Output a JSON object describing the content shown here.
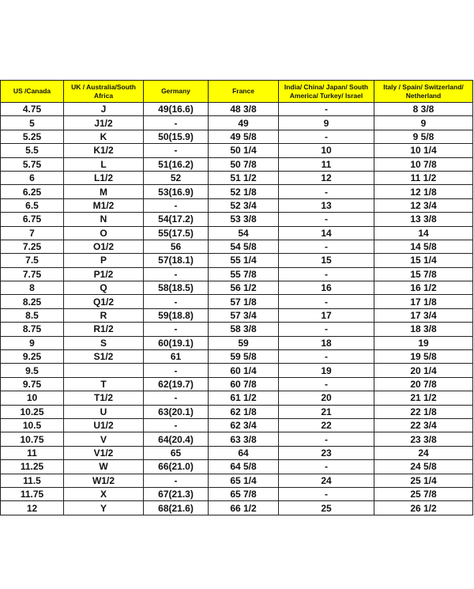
{
  "colors": {
    "header_bg": "#ffff00",
    "border": "#222222"
  },
  "table": {
    "headers": [
      "US /Canada",
      "UK / Australia/South Africa",
      "Germany",
      "France",
      "India/ China/ Japan/ South America/ Turkey/ Israel",
      "Italy / Spain/ Switzerland/ Netherland"
    ],
    "rows": [
      [
        "4.75",
        "J",
        "49(16.6)",
        "48 3/8",
        "-",
        "8 3/8"
      ],
      [
        "5",
        "J1/2",
        "-",
        "49",
        "9",
        "9"
      ],
      [
        "5.25",
        "K",
        "50(15.9)",
        "49 5/8",
        "-",
        "9 5/8"
      ],
      [
        "5.5",
        "K1/2",
        "-",
        "50 1/4",
        "10",
        "10 1/4"
      ],
      [
        "5.75",
        "L",
        "51(16.2)",
        "50 7/8",
        "11",
        "10 7/8"
      ],
      [
        "6",
        "L1/2",
        "52",
        "51 1/2",
        "12",
        "11 1/2"
      ],
      [
        "6.25",
        "M",
        "53(16.9)",
        "52 1/8",
        "-",
        "12 1/8"
      ],
      [
        "6.5",
        "M1/2",
        "-",
        "52 3/4",
        "13",
        "12 3/4"
      ],
      [
        "6.75",
        "N",
        "54(17.2)",
        "53 3/8",
        "-",
        "13 3/8"
      ],
      [
        "7",
        "O",
        "55(17.5)",
        "54",
        "14",
        "14"
      ],
      [
        "7.25",
        "O1/2",
        "56",
        "54 5/8",
        "-",
        "14 5/8"
      ],
      [
        "7.5",
        "P",
        "57(18.1)",
        "55 1/4",
        "15",
        "15 1/4"
      ],
      [
        "7.75",
        "P1/2",
        "-",
        "55 7/8",
        "-",
        "15 7/8"
      ],
      [
        "8",
        "Q",
        "58(18.5)",
        "56 1/2",
        "16",
        "16 1/2"
      ],
      [
        "8.25",
        "Q1/2",
        "-",
        "57 1/8",
        "-",
        "17 1/8"
      ],
      [
        "8.5",
        "R",
        "59(18.8)",
        "57 3/4",
        "17",
        "17 3/4"
      ],
      [
        "8.75",
        "R1/2",
        "-",
        "58 3/8",
        "-",
        "18 3/8"
      ],
      [
        "9",
        "S",
        "60(19.1)",
        "59",
        "18",
        "19"
      ],
      [
        "9.25",
        "S1/2",
        "61",
        "59 5/8",
        "-",
        "19 5/8"
      ],
      [
        "9.5",
        "",
        "-",
        "60 1/4",
        "19",
        "20 1/4"
      ],
      [
        "9.75",
        "T",
        "62(19.7)",
        "60 7/8",
        "-",
        "20 7/8"
      ],
      [
        "10",
        "T1/2",
        "-",
        "61 1/2",
        "20",
        "21 1/2"
      ],
      [
        "10.25",
        "U",
        "63(20.1)",
        "62 1/8",
        "21",
        "22 1/8"
      ],
      [
        "10.5",
        "U1/2",
        "-",
        "62 3/4",
        "22",
        "22 3/4"
      ],
      [
        "10.75",
        "V",
        "64(20.4)",
        "63 3/8",
        "-",
        "23 3/8"
      ],
      [
        "11",
        "V1/2",
        "65",
        "64",
        "23",
        "24"
      ],
      [
        "11.25",
        "W",
        "66(21.0)",
        "64 5/8",
        "-",
        "24 5/8"
      ],
      [
        "11.5",
        "W1/2",
        "-",
        "65 1/4",
        "24",
        "25 1/4"
      ],
      [
        "11.75",
        "X",
        "67(21.3)",
        "65 7/8",
        "-",
        "25 7/8"
      ],
      [
        "12",
        "Y",
        "68(21.6)",
        "66 1/2",
        "25",
        "26 1/2"
      ]
    ]
  }
}
